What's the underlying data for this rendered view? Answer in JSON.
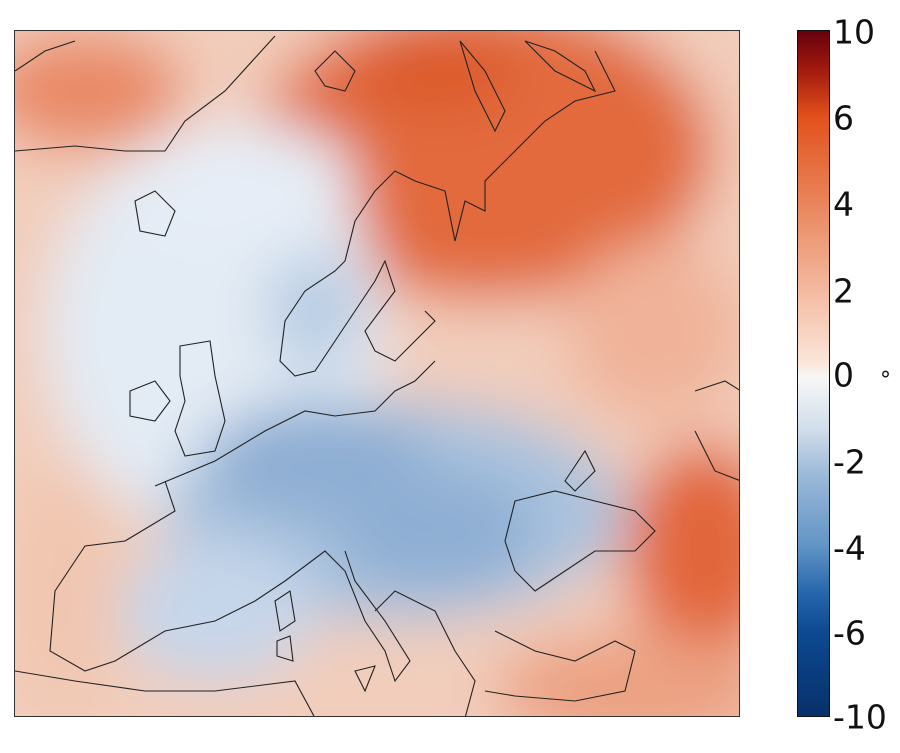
{
  "colorbar": {
    "ticks": [
      "10",
      "6",
      "4",
      "2",
      "0",
      "-2",
      "-4",
      "-6",
      "-10"
    ],
    "unit": "°",
    "range": [
      -10,
      10
    ],
    "colors": {
      "max": "#67000d",
      "mid": "#f7f7f7",
      "min": "#08306b"
    }
  }
}
